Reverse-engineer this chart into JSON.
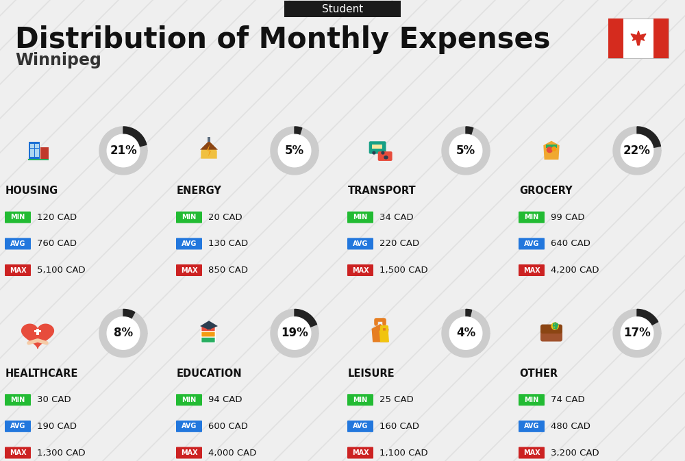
{
  "title": "Distribution of Monthly Expenses",
  "subtitle": "Student",
  "city": "Winnipeg",
  "background_color": "#efefef",
  "header_bg": "#1a1a1a",
  "header_text_color": "#ffffff",
  "categories": [
    {
      "name": "HOUSING",
      "percent": 21,
      "min": "120 CAD",
      "avg": "760 CAD",
      "max": "5,100 CAD",
      "row": 0,
      "col": 0
    },
    {
      "name": "ENERGY",
      "percent": 5,
      "min": "20 CAD",
      "avg": "130 CAD",
      "max": "850 CAD",
      "row": 0,
      "col": 1
    },
    {
      "name": "TRANSPORT",
      "percent": 5,
      "min": "34 CAD",
      "avg": "220 CAD",
      "max": "1,500 CAD",
      "row": 0,
      "col": 2
    },
    {
      "name": "GROCERY",
      "percent": 22,
      "min": "99 CAD",
      "avg": "640 CAD",
      "max": "4,200 CAD",
      "row": 0,
      "col": 3
    },
    {
      "name": "HEALTHCARE",
      "percent": 8,
      "min": "30 CAD",
      "avg": "190 CAD",
      "max": "1,300 CAD",
      "row": 1,
      "col": 0
    },
    {
      "name": "EDUCATION",
      "percent": 19,
      "min": "94 CAD",
      "avg": "600 CAD",
      "max": "4,000 CAD",
      "row": 1,
      "col": 1
    },
    {
      "name": "LEISURE",
      "percent": 4,
      "min": "25 CAD",
      "avg": "160 CAD",
      "max": "1,100 CAD",
      "row": 1,
      "col": 2
    },
    {
      "name": "OTHER",
      "percent": 17,
      "min": "74 CAD",
      "avg": "480 CAD",
      "max": "3,200 CAD",
      "row": 1,
      "col": 3
    }
  ],
  "min_color": "#22bb33",
  "avg_color": "#2277dd",
  "max_color": "#cc2222",
  "arc_dark": "#222222",
  "arc_light": "#cccccc",
  "stripe_color": "#e0e0e0",
  "flag_red": "#d52b1e"
}
